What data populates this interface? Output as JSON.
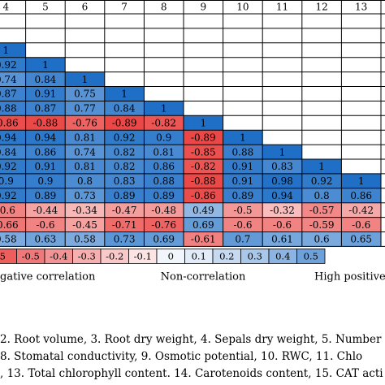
{
  "chart_data": {
    "type": "heatmap",
    "column_headers": [
      "4",
      "5",
      "6",
      "7",
      "8",
      "9",
      "10",
      "11",
      "12",
      "13"
    ],
    "rows": [
      [
        null,
        null,
        null,
        null,
        null,
        null,
        null,
        null,
        null,
        null
      ],
      [
        null,
        null,
        null,
        null,
        null,
        null,
        null,
        null,
        null,
        null
      ],
      [
        1,
        null,
        null,
        null,
        null,
        null,
        null,
        null,
        null,
        null
      ],
      [
        0.92,
        1,
        null,
        null,
        null,
        null,
        null,
        null,
        null,
        null
      ],
      [
        0.74,
        0.84,
        1,
        null,
        null,
        null,
        null,
        null,
        null,
        null
      ],
      [
        0.87,
        0.91,
        0.75,
        1,
        null,
        null,
        null,
        null,
        null,
        null
      ],
      [
        0.88,
        0.87,
        0.77,
        0.84,
        1,
        null,
        null,
        null,
        null,
        null
      ],
      [
        -0.86,
        -0.88,
        -0.76,
        -0.89,
        -0.82,
        1,
        null,
        null,
        null,
        null
      ],
      [
        0.94,
        0.94,
        0.81,
        0.92,
        0.9,
        -0.89,
        1,
        null,
        null,
        null
      ],
      [
        0.84,
        0.86,
        0.74,
        0.82,
        0.81,
        -0.85,
        0.88,
        1,
        null,
        null
      ],
      [
        0.92,
        0.91,
        0.81,
        0.82,
        0.86,
        -0.82,
        0.91,
        0.83,
        1,
        null
      ],
      [
        0.9,
        0.9,
        0.8,
        0.83,
        0.88,
        -0.88,
        0.91,
        0.98,
        0.92,
        1
      ],
      [
        0.92,
        0.89,
        0.73,
        0.89,
        0.89,
        -0.86,
        0.89,
        0.94,
        0.8,
        0.86
      ],
      [
        -0.6,
        -0.44,
        -0.34,
        -0.47,
        -0.48,
        0.49,
        -0.5,
        -0.32,
        -0.57,
        -0.42
      ],
      [
        -0.66,
        -0.6,
        -0.45,
        -0.71,
        -0.76,
        0.69,
        -0.6,
        -0.6,
        -0.59,
        -0.6
      ],
      [
        0.58,
        0.63,
        0.58,
        0.73,
        0.69,
        -0.61,
        0.7,
        0.61,
        0.6,
        0.65
      ]
    ],
    "color_scale": {
      "ticks": [
        "5",
        "-0.5",
        "-0.4",
        "-0.3",
        "-0.2",
        "-0.1",
        "0",
        "0.1",
        "0.2",
        "0.3",
        "0.4",
        "0.5"
      ],
      "range": [
        -1,
        1
      ],
      "negative_color": "#e8302f",
      "neutral_color": "#ffffff",
      "positive_color": "#1f6fc7"
    },
    "legend_labels": {
      "left": "gative correlation",
      "center": "Non-correlation",
      "right": "High positive co"
    }
  },
  "caption": {
    "line1": "2. Root volume, 3. Root dry weight, 4. Sepals dry weight, 5. Number",
    "line2": "8. Stomatal conductivity, 9. Osmotic potential, 10. RWC, 11. Chlo",
    "line3": ", 13. Total chlorophyll content. 14. Carotenoids content, 15. CAT acti"
  }
}
